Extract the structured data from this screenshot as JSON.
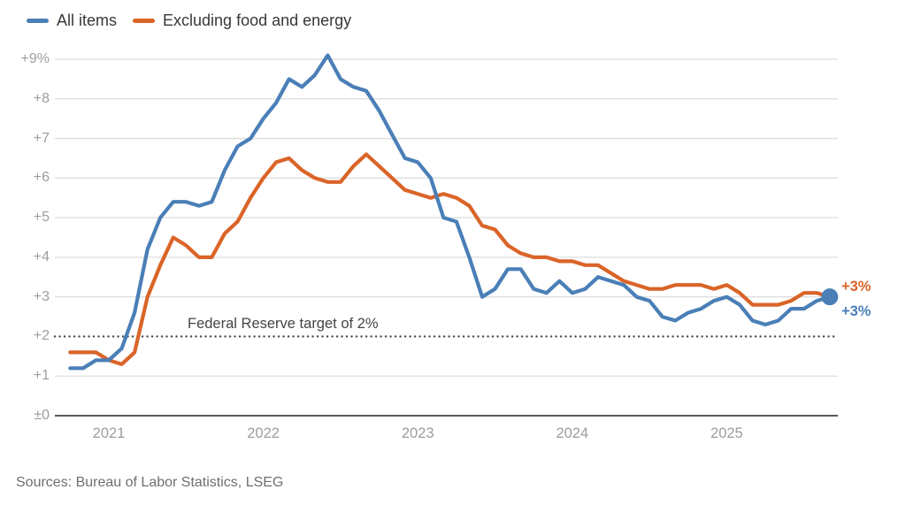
{
  "source": "Sources: Bureau of Labor Statistics, LSEG",
  "chart_data": {
    "type": "line",
    "title": "",
    "xlabel": "",
    "ylabel": "",
    "ylim": [
      0,
      9
    ],
    "grid": true,
    "legend_position": "top-left",
    "x_unit": "month",
    "x_range": "Oct 2020 - Sep 2025",
    "x_tick_labels": [
      "2021",
      "2022",
      "2023",
      "2024",
      "2025"
    ],
    "y_tick_labels": [
      "+9%",
      "+8",
      "+7",
      "+6",
      "+5",
      "+4",
      "+3",
      "+2",
      "+1",
      "±0"
    ],
    "x": [
      "Oct 2020",
      "Nov 2020",
      "Dec 2020",
      "Jan 2021",
      "Feb 2021",
      "Mar 2021",
      "Apr 2021",
      "May 2021",
      "Jun 2021",
      "Jul 2021",
      "Aug 2021",
      "Sep 2021",
      "Oct 2021",
      "Nov 2021",
      "Dec 2021",
      "Jan 2022",
      "Feb 2022",
      "Mar 2022",
      "Apr 2022",
      "May 2022",
      "Jun 2022",
      "Jul 2022",
      "Aug 2022",
      "Sep 2022",
      "Oct 2022",
      "Nov 2022",
      "Dec 2022",
      "Jan 2023",
      "Feb 2023",
      "Mar 2023",
      "Apr 2023",
      "May 2023",
      "Jun 2023",
      "Jul 2023",
      "Aug 2023",
      "Sep 2023",
      "Oct 2023",
      "Nov 2023",
      "Dec 2023",
      "Jan 2024",
      "Feb 2024",
      "Mar 2024",
      "Apr 2024",
      "May 2024",
      "Jun 2024",
      "Jul 2024",
      "Aug 2024",
      "Sep 2024",
      "Oct 2024",
      "Nov 2024",
      "Dec 2024",
      "Jan 2025",
      "Feb 2025",
      "Mar 2025",
      "Apr 2025",
      "May 2025",
      "Jun 2025",
      "Jul 2025",
      "Aug 2025",
      "Sep 2025"
    ],
    "series": [
      {
        "name": "All items",
        "color": "#4a7fb7",
        "end_label": "+3%",
        "end_dot": true,
        "values": [
          1.2,
          1.2,
          1.4,
          1.4,
          1.7,
          2.6,
          4.2,
          5.0,
          5.4,
          5.4,
          5.3,
          5.4,
          6.2,
          6.8,
          7.0,
          7.5,
          7.9,
          8.5,
          8.3,
          8.6,
          9.1,
          8.5,
          8.3,
          8.2,
          7.7,
          7.1,
          6.5,
          6.4,
          6.0,
          5.0,
          4.9,
          4.0,
          3.0,
          3.2,
          3.7,
          3.7,
          3.2,
          3.1,
          3.4,
          3.1,
          3.2,
          3.5,
          3.4,
          3.3,
          3.0,
          2.9,
          2.5,
          2.4,
          2.6,
          2.7,
          2.9,
          3.0,
          2.8,
          2.4,
          2.3,
          2.4,
          2.7,
          2.7,
          2.9,
          3.0
        ]
      },
      {
        "name": "Excluding food and energy",
        "color": "#da6428",
        "end_label": "+3%",
        "end_dot": false,
        "values": [
          1.6,
          1.6,
          1.6,
          1.4,
          1.3,
          1.6,
          3.0,
          3.8,
          4.5,
          4.3,
          4.0,
          4.0,
          4.6,
          4.9,
          5.5,
          6.0,
          6.4,
          6.5,
          6.2,
          6.0,
          5.9,
          5.9,
          6.3,
          6.6,
          6.3,
          6.0,
          5.7,
          5.6,
          5.5,
          5.6,
          5.5,
          5.3,
          4.8,
          4.7,
          4.3,
          4.1,
          4.0,
          4.0,
          3.9,
          3.9,
          3.8,
          3.8,
          3.6,
          3.4,
          3.3,
          3.2,
          3.2,
          3.3,
          3.3,
          3.3,
          3.2,
          3.3,
          3.1,
          2.8,
          2.8,
          2.8,
          2.9,
          3.1,
          3.1,
          3.0
        ]
      }
    ],
    "reference_line": {
      "value": 2,
      "style": "dotted",
      "label": "Federal Reserve target of 2%"
    }
  }
}
